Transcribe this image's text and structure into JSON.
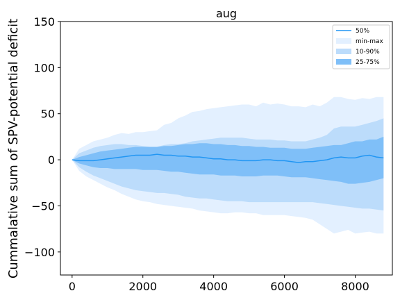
{
  "chart_data": {
    "type": "area",
    "title": "aug",
    "xlabel": "",
    "ylabel": "Cummalative sum of SPV-potential deficit",
    "xlim": [
      -330,
      9050
    ],
    "ylim": [
      -125,
      150
    ],
    "xticks": [
      0,
      2000,
      4000,
      6000,
      8000
    ],
    "xtick_labels": [
      "0",
      "2000",
      "4000",
      "6000",
      "8000"
    ],
    "yticks": [
      -100,
      -50,
      0,
      50,
      100,
      150
    ],
    "ytick_labels": [
      "−100",
      "−50",
      "0",
      "50",
      "100",
      "150"
    ],
    "grid": false,
    "legend_position": "top-right",
    "colors": {
      "median": "#2196f3",
      "minmax": "#e3f0ff",
      "p10_90": "#bcdcfb",
      "p25_75": "#7fbff8"
    },
    "legend": [
      {
        "label": "50%",
        "kind": "line"
      },
      {
        "label": "min-max",
        "kind": "band"
      },
      {
        "label": "10-90%",
        "kind": "band"
      },
      {
        "label": "25-75%",
        "kind": "band"
      }
    ],
    "x": [
      0,
      200,
      400,
      600,
      800,
      1000,
      1200,
      1400,
      1600,
      1800,
      2000,
      2200,
      2400,
      2600,
      2800,
      3000,
      3200,
      3400,
      3600,
      3800,
      4000,
      4200,
      4400,
      4600,
      4800,
      5000,
      5200,
      5400,
      5600,
      5800,
      6000,
      6200,
      6400,
      6600,
      6800,
      7000,
      7200,
      7400,
      7600,
      7800,
      8000,
      8200,
      8400,
      8600,
      8800
    ],
    "series": [
      {
        "name": "max",
        "values": [
          0,
          12,
          16,
          20,
          22,
          24,
          27,
          29,
          28,
          30,
          30,
          31,
          32,
          38,
          40,
          45,
          48,
          52,
          53,
          55,
          56,
          57,
          58,
          59,
          60,
          60,
          58,
          62,
          60,
          61,
          60,
          58,
          58,
          57,
          60,
          58,
          62,
          68,
          68,
          66,
          65,
          67,
          66,
          68,
          68
        ]
      },
      {
        "name": "p90",
        "values": [
          0,
          7,
          10,
          13,
          15,
          16,
          17,
          17,
          16,
          16,
          15,
          14,
          14,
          16,
          17,
          17,
          18,
          20,
          21,
          22,
          23,
          24,
          24,
          24,
          24,
          23,
          22,
          22,
          22,
          21,
          21,
          20,
          20,
          20,
          22,
          24,
          27,
          34,
          36,
          36,
          36,
          38,
          40,
          42,
          45
        ]
      },
      {
        "name": "p75",
        "values": [
          0,
          3,
          5,
          7,
          9,
          10,
          11,
          12,
          13,
          14,
          14,
          14,
          14,
          15,
          15,
          16,
          17,
          17,
          18,
          18,
          17,
          17,
          16,
          16,
          15,
          15,
          14,
          14,
          13,
          13,
          13,
          12,
          12,
          12,
          13,
          14,
          15,
          16,
          16,
          18,
          20,
          20,
          22,
          22,
          25
        ]
      },
      {
        "name": "p50",
        "values": [
          0,
          -1,
          -1,
          -1,
          0,
          1,
          2,
          3,
          4,
          5,
          5,
          5,
          6,
          5,
          5,
          4,
          4,
          3,
          3,
          2,
          1,
          1,
          0,
          0,
          -1,
          -1,
          -1,
          0,
          0,
          -1,
          -1,
          -2,
          -3,
          -2,
          -2,
          -1,
          0,
          2,
          3,
          2,
          2,
          4,
          5,
          3,
          2
        ]
      },
      {
        "name": "p25",
        "values": [
          0,
          -4,
          -6,
          -8,
          -9,
          -9,
          -10,
          -10,
          -10,
          -10,
          -11,
          -11,
          -11,
          -12,
          -13,
          -13,
          -14,
          -15,
          -16,
          -16,
          -16,
          -17,
          -17,
          -17,
          -18,
          -18,
          -18,
          -17,
          -17,
          -17,
          -18,
          -19,
          -19,
          -19,
          -20,
          -21,
          -22,
          -23,
          -24,
          -26,
          -26,
          -25,
          -24,
          -22,
          -20
        ]
      },
      {
        "name": "p10",
        "values": [
          0,
          -8,
          -13,
          -17,
          -20,
          -23,
          -26,
          -29,
          -31,
          -33,
          -34,
          -35,
          -36,
          -36,
          -37,
          -38,
          -40,
          -41,
          -42,
          -42,
          -43,
          -44,
          -45,
          -45,
          -45,
          -46,
          -46,
          -46,
          -46,
          -46,
          -46,
          -46,
          -46,
          -46,
          -46,
          -47,
          -48,
          -49,
          -50,
          -51,
          -52,
          -53,
          -53,
          -54,
          -55
        ]
      },
      {
        "name": "min",
        "values": [
          0,
          -12,
          -18,
          -22,
          -26,
          -30,
          -33,
          -37,
          -40,
          -43,
          -45,
          -46,
          -48,
          -49,
          -50,
          -51,
          -52,
          -53,
          -55,
          -56,
          -57,
          -58,
          -58,
          -57,
          -57,
          -58,
          -58,
          -60,
          -60,
          -60,
          -60,
          -61,
          -62,
          -63,
          -65,
          -70,
          -75,
          -80,
          -78,
          -76,
          -80,
          -79,
          -78,
          -80,
          -80
        ]
      }
    ]
  }
}
